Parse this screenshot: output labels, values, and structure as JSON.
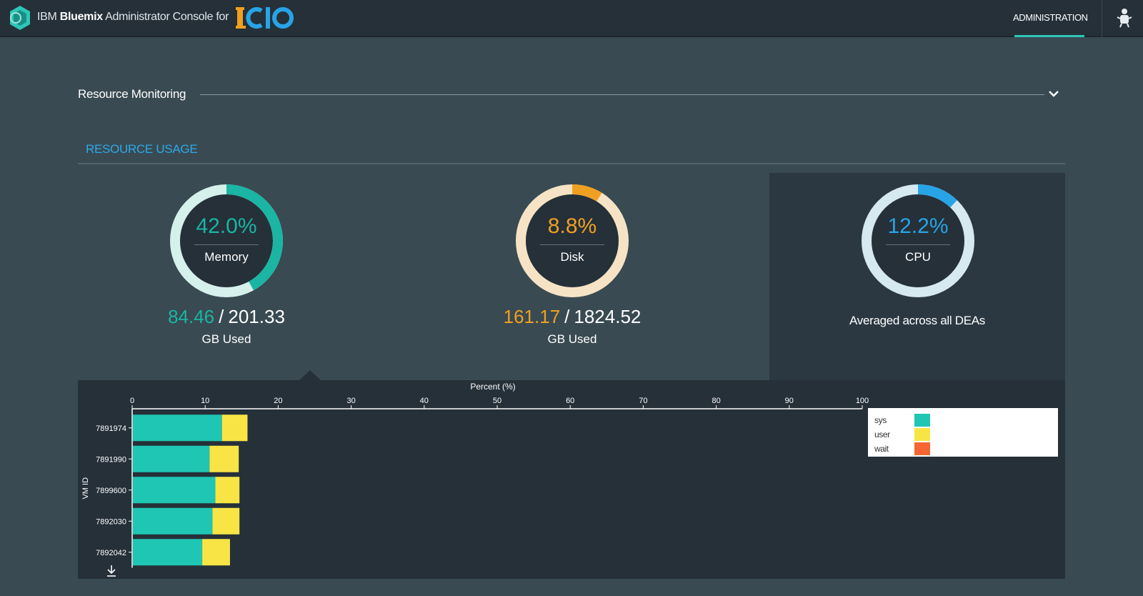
{
  "header": {
    "brand_prefix": "IBM",
    "brand_bold": "Bluemix",
    "brand_suffix": "Administrator Console for",
    "nav": {
      "administration": "ADMINISTRATION"
    }
  },
  "section": {
    "title": "Resource Monitoring"
  },
  "resource_usage": {
    "title": "RESOURCE USAGE",
    "memory": {
      "percent_text": "42.0%",
      "percent": 42.0,
      "label": "Memory",
      "used": "84.46",
      "total": "201.33",
      "unit": "GB Used",
      "color": "#1ab5a3",
      "track": "#d6f0ec"
    },
    "disk": {
      "percent_text": "8.8%",
      "percent": 8.8,
      "label": "Disk",
      "used": "161.17",
      "total": "1824.52",
      "unit": "GB Used",
      "color": "#f0a021",
      "track": "#f6e3c6"
    },
    "cpu": {
      "percent_text": "12.2%",
      "percent": 12.2,
      "label": "CPU",
      "note": "Averaged across all DEAs",
      "color": "#28a4e6",
      "track": "#d6e8f0"
    }
  },
  "chart_data": {
    "type": "bar",
    "orientation": "horizontal",
    "stacked": true,
    "title": "Percent (%)",
    "xlabel": "Percent (%)",
    "ylabel": "VM ID",
    "xlim": [
      0,
      100
    ],
    "xticks": [
      0,
      10,
      20,
      30,
      40,
      50,
      60,
      70,
      80,
      90,
      100
    ],
    "categories": [
      "7891974",
      "7891990",
      "7899600",
      "7892030",
      "7892042"
    ],
    "series": [
      {
        "name": "sys",
        "color": "#1fc6b4",
        "values": [
          12.2,
          10.5,
          11.3,
          10.9,
          9.5
        ]
      },
      {
        "name": "user",
        "color": "#f8e545",
        "values": [
          3.5,
          4.0,
          3.3,
          3.7,
          3.8
        ]
      },
      {
        "name": "wait",
        "color": "#f56632",
        "values": [
          0,
          0,
          0,
          0,
          0
        ]
      }
    ],
    "legend": "top-right"
  }
}
